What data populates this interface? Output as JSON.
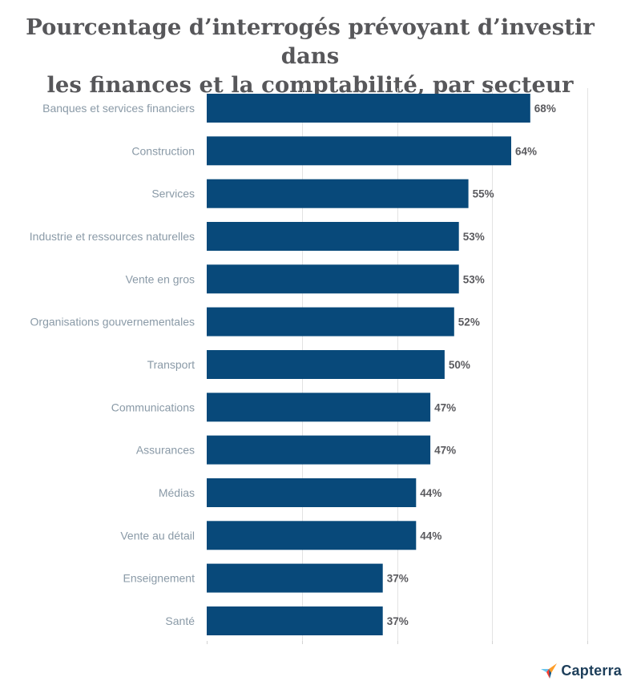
{
  "chart_data": {
    "type": "bar",
    "orientation": "horizontal",
    "title": "Pourcentage d’interrogés prévoyant d’investir dans les finances et la comptabilité, par secteur d’activité",
    "title_lines": [
      "Pourcentage d’interrogés prévoyant d’investir dans",
      "les finances et la comptabilité, par secteur d’activité"
    ],
    "categories": [
      "Banques et services financiers",
      "Construction",
      "Services",
      "Industrie et ressources naturelles",
      "Vente en gros",
      "Organisations gouvernementales",
      "Transport",
      "Communications",
      "Assurances",
      "Médias",
      "Vente au détail",
      "Enseignement",
      "Santé"
    ],
    "values": [
      68,
      64,
      55,
      53,
      53,
      52,
      50,
      47,
      47,
      44,
      44,
      37,
      37
    ],
    "value_suffix": "%",
    "xlim": [
      0,
      80
    ],
    "gridlines": [
      20,
      40,
      60,
      80
    ],
    "xlabel": "",
    "ylabel": "",
    "bar_color": "#08497a"
  },
  "branding": {
    "name": "Capterra"
  },
  "colors": {
    "logo_orange": "#ff9d28",
    "logo_blue": "#68c5ed",
    "logo_navy": "#044d80",
    "logo_red": "#ff3d2e"
  }
}
